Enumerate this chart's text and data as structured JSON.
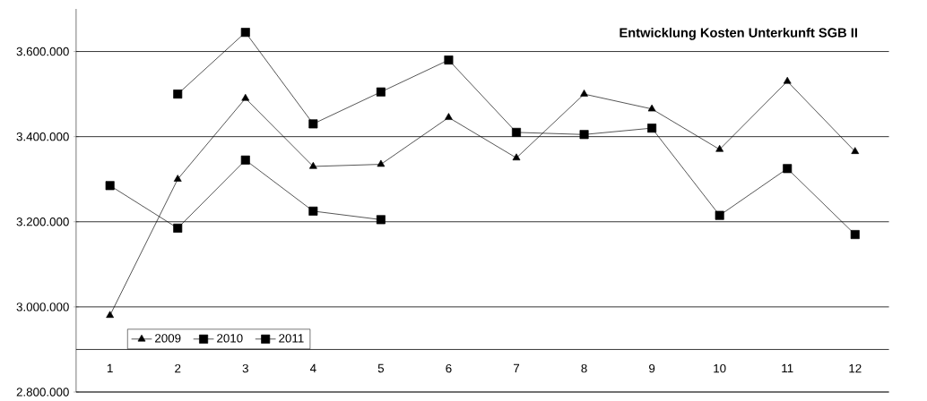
{
  "chart_data": {
    "type": "line",
    "title": "Entwicklung Kosten Unterkunft SGB II",
    "categories": [
      "1",
      "2",
      "3",
      "4",
      "5",
      "6",
      "7",
      "8",
      "9",
      "10",
      "11",
      "12"
    ],
    "series": [
      {
        "name": "2009",
        "color": "#000000",
        "marker": "triangle",
        "values": [
          2980000,
          3300000,
          3490000,
          3330000,
          3335000,
          3445000,
          3350000,
          3500000,
          3465000,
          3370000,
          3530000,
          3365000
        ]
      },
      {
        "name": "2010",
        "color": "#000000",
        "marker": "square",
        "values": [
          null,
          3500000,
          3645000,
          3430000,
          3505000,
          3580000,
          3410000,
          3405000,
          3420000,
          3215000,
          3325000,
          3170000
        ]
      },
      {
        "name": "2011",
        "color": "#000000",
        "marker": "square",
        "values": [
          3285000,
          3185000,
          3345000,
          3225000,
          3205000,
          null,
          null,
          null,
          null,
          null,
          null,
          null
        ]
      }
    ],
    "ylim": [
      2800000,
      3700000
    ],
    "yticks": [
      {
        "value": 2800000,
        "label": "2.800.000"
      },
      {
        "value": 3000000,
        "label": "3.000.000"
      },
      {
        "value": 3200000,
        "label": "3.200.000"
      },
      {
        "value": 3400000,
        "label": "3.400.000"
      },
      {
        "value": 3600000,
        "label": "3.600.000"
      }
    ],
    "ref_lines": [
      {
        "axis": "y",
        "value": 2900000,
        "label": null
      }
    ],
    "grid": "y",
    "legend": "bottom left",
    "line_style": "solid"
  }
}
